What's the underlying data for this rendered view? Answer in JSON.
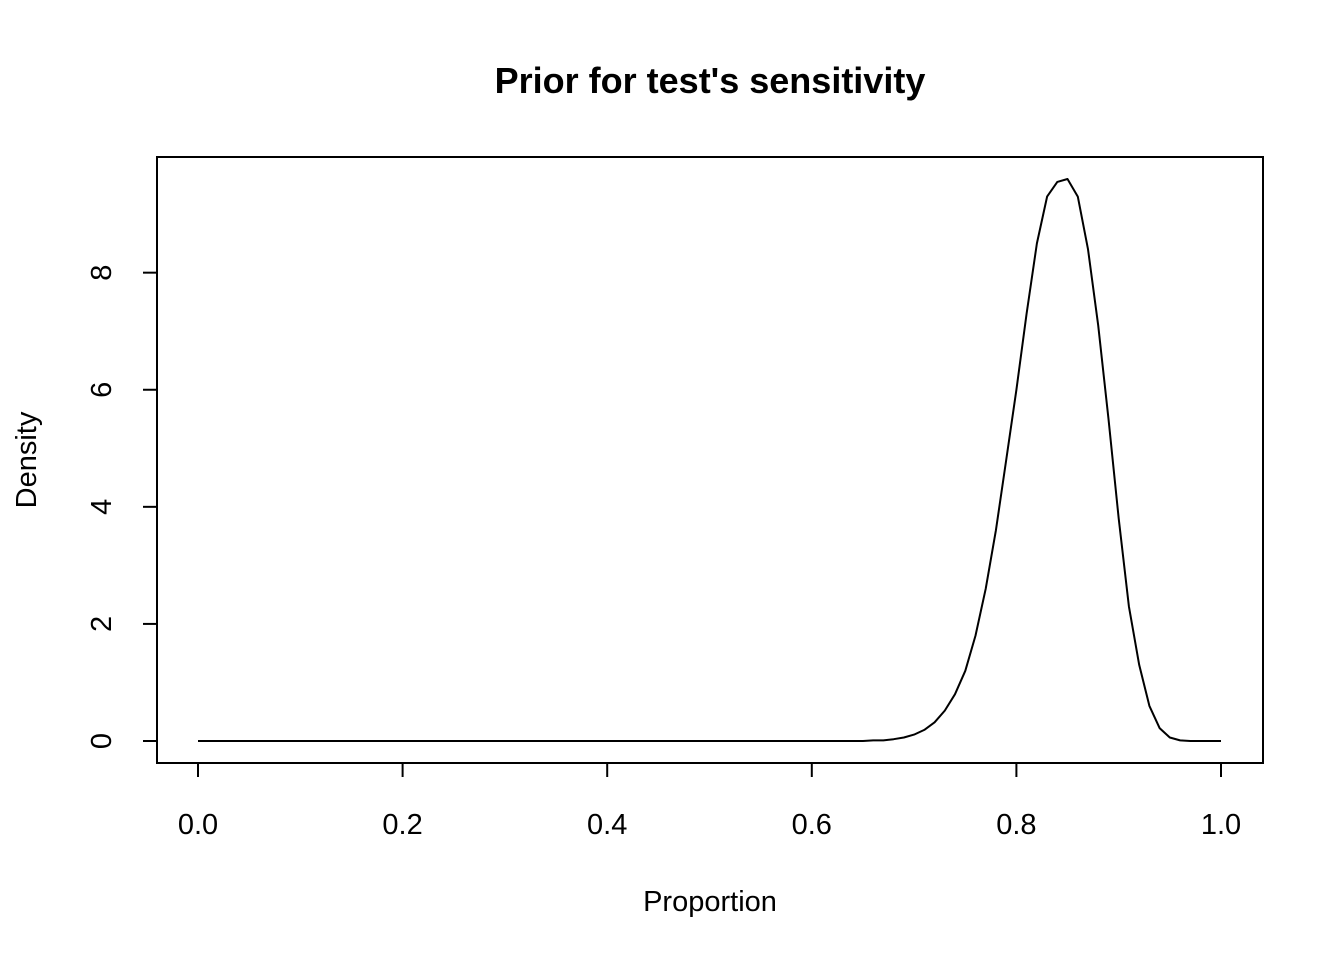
{
  "chart_data": {
    "type": "line",
    "title": "Prior for test's sensitivity",
    "xlabel": "Proportion",
    "ylabel": "Density",
    "xlim": [
      0.0,
      1.0
    ],
    "ylim": [
      0,
      9.6
    ],
    "xticks": [
      0.0,
      0.2,
      0.4,
      0.6,
      0.8,
      1.0
    ],
    "xtick_labels": [
      "0.0",
      "0.2",
      "0.4",
      "0.6",
      "0.8",
      "1.0"
    ],
    "yticks": [
      0,
      2,
      4,
      6,
      8
    ],
    "ytick_labels": [
      "0",
      "2",
      "4",
      "6",
      "8"
    ],
    "grid": false,
    "legend": "none",
    "series": [
      {
        "x": [
          0.0,
          0.1,
          0.2,
          0.3,
          0.4,
          0.5,
          0.6,
          0.65,
          0.66,
          0.67,
          0.68,
          0.69,
          0.7,
          0.71,
          0.72,
          0.73,
          0.74,
          0.75,
          0.76,
          0.77,
          0.78,
          0.79,
          0.8,
          0.81,
          0.82,
          0.83,
          0.84,
          0.85,
          0.86,
          0.87,
          0.88,
          0.89,
          0.9,
          0.91,
          0.92,
          0.93,
          0.94,
          0.95,
          0.96,
          0.97,
          0.98,
          0.99,
          1.0
        ],
        "y": [
          0,
          0,
          0,
          0,
          0,
          0,
          0,
          0.0,
          0.01,
          0.01,
          0.03,
          0.06,
          0.11,
          0.19,
          0.32,
          0.52,
          0.8,
          1.2,
          1.8,
          2.6,
          3.6,
          4.8,
          6.0,
          7.3,
          8.5,
          9.3,
          9.55,
          9.6,
          9.3,
          8.4,
          7.1,
          5.5,
          3.8,
          2.3,
          1.3,
          0.6,
          0.22,
          0.06,
          0.01,
          0.0,
          0.0,
          0.0,
          0.0
        ]
      }
    ]
  }
}
